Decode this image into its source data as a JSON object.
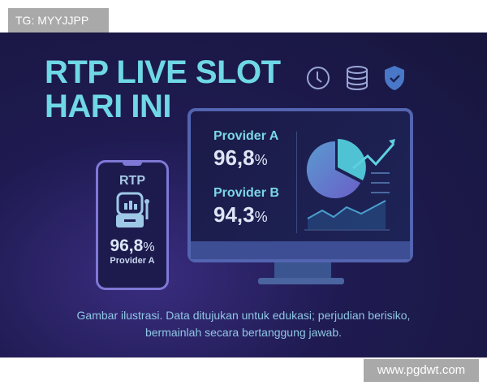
{
  "watermark_top": "TG: MYYJJPP",
  "watermark_bottom": "www.pgdwt.com",
  "title": {
    "line1": "RTP LIVE SLOT",
    "line2": "HARI INI"
  },
  "icons": [
    "clock-icon",
    "database-icon",
    "shield-check-icon"
  ],
  "phone": {
    "label": "RTP",
    "value": "96,8",
    "unit": "%",
    "provider": "Provider A"
  },
  "monitor": {
    "providers": [
      {
        "name": "Provider A",
        "value": "96,8",
        "unit": "%"
      },
      {
        "name": "Provider B",
        "value": "94,3",
        "unit": "%"
      }
    ]
  },
  "disclaimer": {
    "line1": "Gambar ilustrasi. Data ditujukan untuk edukasi; perjudian berisiko,",
    "line2": "bermainlah secara bertanggung jawab."
  },
  "colors": {
    "accent": "#6fd7e6",
    "background": "#1f1b52"
  }
}
